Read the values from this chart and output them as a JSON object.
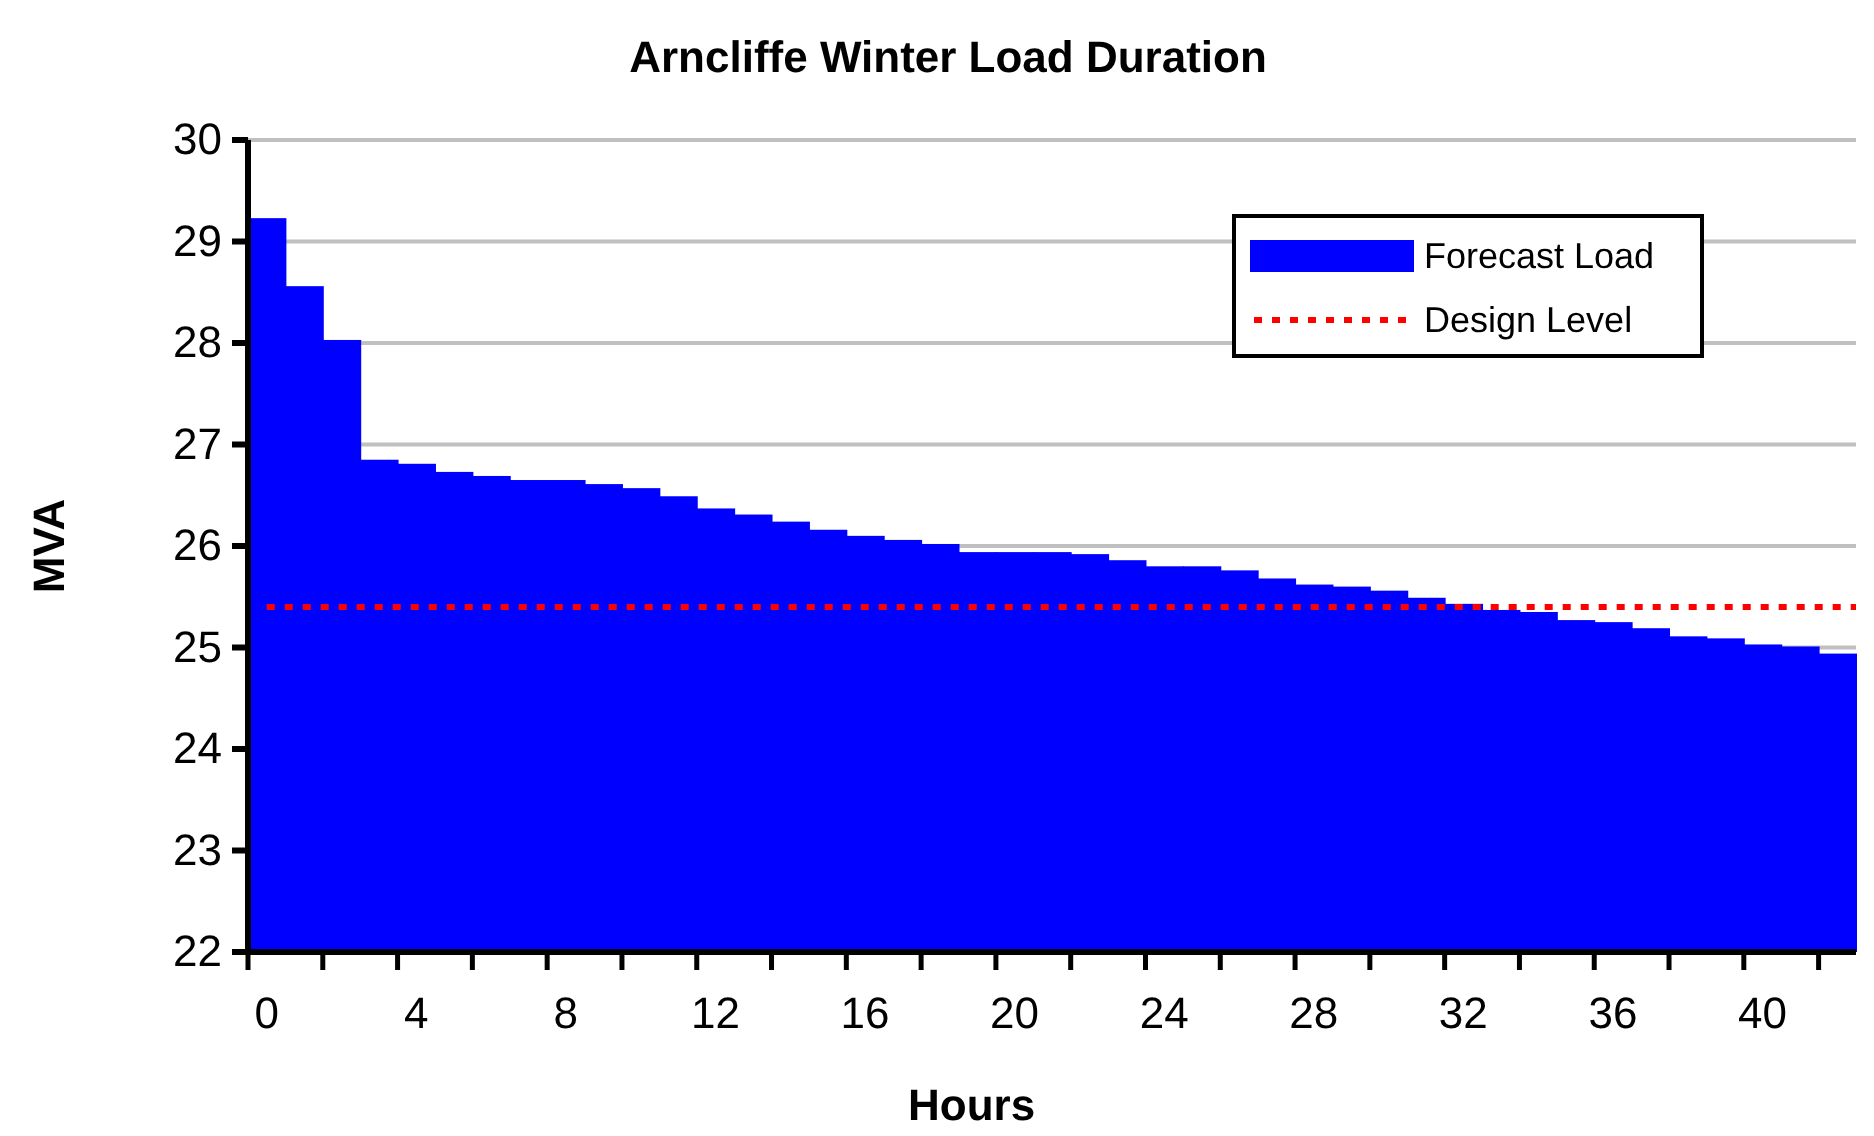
{
  "chart_data": {
    "type": "bar",
    "title": "Arncliffe Winter Load Duration",
    "xlabel": "Hours",
    "ylabel": "MVA",
    "categories": [
      "0",
      null,
      null,
      null,
      "4",
      null,
      null,
      null,
      "8",
      null,
      null,
      null,
      "12",
      null,
      null,
      null,
      "16",
      null,
      null,
      null,
      "20",
      null,
      null,
      null,
      "24",
      null,
      null,
      null,
      "28",
      null,
      null,
      null,
      "32",
      null,
      null,
      null,
      "36",
      null,
      null,
      null,
      "40",
      null,
      null
    ],
    "series": [
      {
        "name": "Forecast Load",
        "color": "#0000ff",
        "values": [
          29.23,
          28.56,
          28.03,
          26.85,
          26.81,
          26.73,
          26.69,
          26.65,
          26.65,
          26.61,
          26.57,
          26.49,
          26.37,
          26.31,
          26.24,
          26.16,
          26.1,
          26.06,
          26.02,
          25.94,
          25.94,
          25.94,
          25.92,
          25.86,
          25.8,
          25.8,
          25.76,
          25.68,
          25.62,
          25.6,
          25.56,
          25.49,
          25.43,
          25.37,
          25.35,
          25.27,
          25.25,
          25.19,
          25.11,
          25.09,
          25.03,
          25.01,
          24.94
        ]
      }
    ],
    "ref_lines": [
      {
        "axis": "y",
        "value": 25.4,
        "label": "Design Level",
        "color": "#ff0000",
        "line_style": "dotted"
      }
    ],
    "ylim": [
      22,
      30
    ],
    "yticks": [
      22,
      23,
      24,
      25,
      26,
      27,
      28,
      29,
      30
    ],
    "grid": "y",
    "legend": "top right"
  }
}
